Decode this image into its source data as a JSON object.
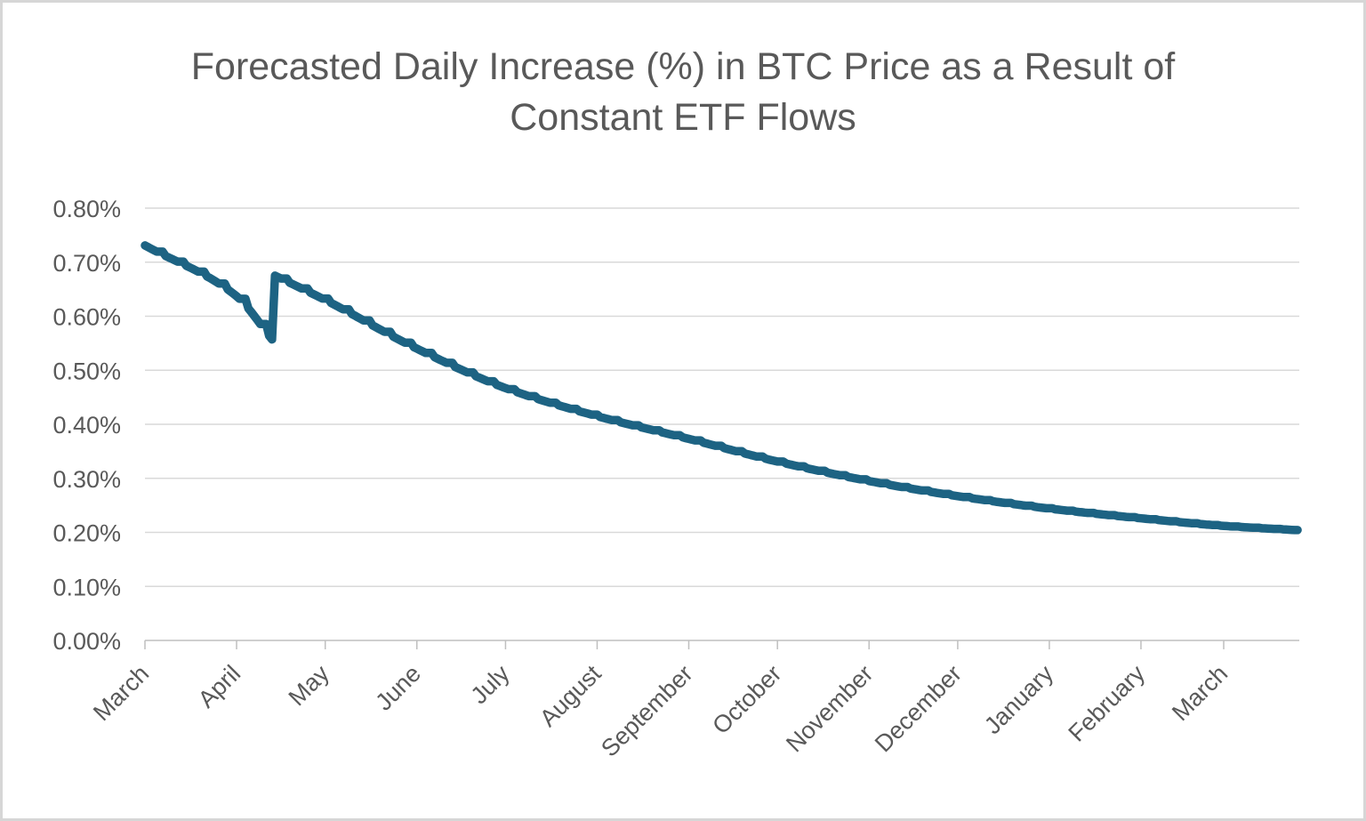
{
  "page": {
    "background": "#ffffff",
    "frame_border_color": "#d6d6d6"
  },
  "chart_data": {
    "type": "line",
    "title": "Forecasted Daily Increase (%) in BTC Price as a Result of Constant ETF Flows",
    "title_color": "#595959",
    "axis_text_color": "#595959",
    "grid_color": "#d9d9d9",
    "axis_line_color": "#bfbfbf",
    "line_color": "#1d6383",
    "grid": true,
    "legend": false,
    "ylabel": "",
    "xlabel": "",
    "ylim_pct": [
      0.0,
      0.8
    ],
    "y_tick_step_pct": 0.1,
    "y_tick_labels": [
      "0.00%",
      "0.10%",
      "0.20%",
      "0.30%",
      "0.40%",
      "0.50%",
      "0.60%",
      "0.70%",
      "0.80%"
    ],
    "x_tick_labels": [
      "March",
      "April",
      "May",
      "June",
      "July",
      "August",
      "September",
      "October",
      "November",
      "December",
      "January",
      "February",
      "March"
    ],
    "x_tick_days": [
      0,
      31,
      61,
      92,
      122,
      153,
      184,
      214,
      245,
      275,
      306,
      337,
      365
    ],
    "total_days": 390,
    "series": [
      {
        "name": "Forecasted daily increase in BTC price (%)",
        "pattern": "weekly steps: value holds flat on weekends (no ETF flows), declines on weekdays",
        "jump_after_day": 43,
        "points_day_value_pct": [
          [
            0,
            0.731
          ],
          [
            31,
            0.637
          ],
          [
            43,
            0.557
          ],
          [
            44,
            0.675
          ],
          [
            61,
            0.63
          ],
          [
            92,
            0.54
          ],
          [
            122,
            0.467
          ],
          [
            153,
            0.415
          ],
          [
            184,
            0.373
          ],
          [
            214,
            0.331
          ],
          [
            245,
            0.295
          ],
          [
            275,
            0.267
          ],
          [
            306,
            0.244
          ],
          [
            337,
            0.226
          ],
          [
            365,
            0.212
          ],
          [
            390,
            0.204
          ]
        ]
      }
    ]
  }
}
